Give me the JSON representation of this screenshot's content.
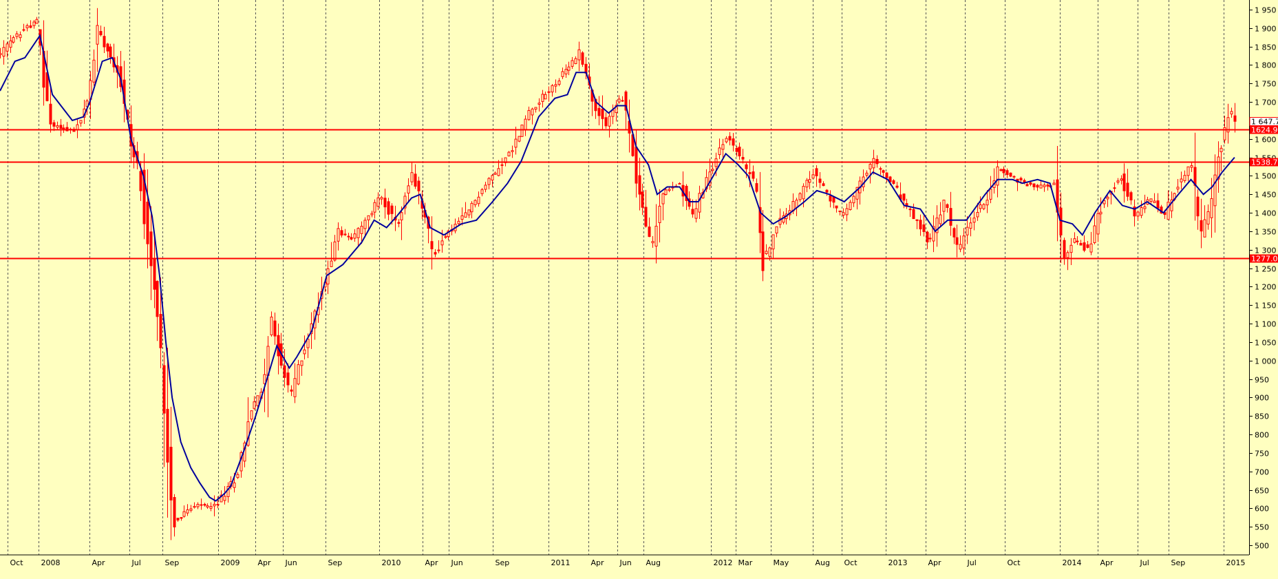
{
  "colors": {
    "background": "#ffffc0",
    "candle": "#ff0000",
    "moving_average": "#00009c",
    "level_line": "#ff0000",
    "grid": "#555555"
  },
  "chart_data": {
    "type": "line",
    "title": "",
    "xlabel": "",
    "ylabel": "",
    "ylim": [
      500,
      1950
    ],
    "y_ticks": [
      500,
      550,
      600,
      650,
      700,
      750,
      800,
      850,
      900,
      950,
      1000,
      1050,
      1100,
      1150,
      1200,
      1250,
      1300,
      1350,
      1400,
      1450,
      1500,
      1550,
      1600,
      1650,
      1700,
      1750,
      1800,
      1850,
      1900,
      1950
    ],
    "y_tick_labels": [
      "500",
      "550",
      "600",
      "650",
      "700",
      "750",
      "800",
      "850",
      "900",
      "950",
      "1 000",
      "1 050",
      "1 100",
      "1 150",
      "1 200",
      "1 250",
      "1 300",
      "1 350",
      "1 400",
      "1 450",
      "1 500",
      "1 550",
      "1 600",
      "1 650",
      "1 700",
      "1 750",
      "1 800",
      "1 850",
      "1 900",
      "1 950"
    ],
    "x_ticks": [
      {
        "label": "Oct",
        "t": 0.006
      },
      {
        "label": "2008",
        "t": 0.031
      },
      {
        "label": "Apr",
        "t": 0.072
      },
      {
        "label": "Jul",
        "t": 0.104
      },
      {
        "label": "Sep",
        "t": 0.13
      },
      {
        "label": "2009",
        "t": 0.175
      },
      {
        "label": "Apr",
        "t": 0.205
      },
      {
        "label": "Jun",
        "t": 0.227
      },
      {
        "label": "Sep",
        "t": 0.261
      },
      {
        "label": "2010",
        "t": 0.304
      },
      {
        "label": "Apr",
        "t": 0.339
      },
      {
        "label": "Jun",
        "t": 0.36
      },
      {
        "label": "Sep",
        "t": 0.395
      },
      {
        "label": "2011",
        "t": 0.44
      },
      {
        "label": "Apr",
        "t": 0.472
      },
      {
        "label": "Jun",
        "t": 0.495
      },
      {
        "label": "Aug",
        "t": 0.516
      },
      {
        "label": "2012",
        "t": 0.57
      },
      {
        "label": "Mar",
        "t": 0.59
      },
      {
        "label": "May",
        "t": 0.618
      },
      {
        "label": "Aug",
        "t": 0.652
      },
      {
        "label": "Oct",
        "t": 0.675
      },
      {
        "label": "2013",
        "t": 0.71
      },
      {
        "label": "Apr",
        "t": 0.742
      },
      {
        "label": "Jul",
        "t": 0.774
      },
      {
        "label": "Oct",
        "t": 0.806
      },
      {
        "label": "2014",
        "t": 0.85
      },
      {
        "label": "Apr",
        "t": 0.88
      },
      {
        "label": "Jul",
        "t": 0.912
      },
      {
        "label": "Sep",
        "t": 0.937
      },
      {
        "label": "2015",
        "t": 0.981
      }
    ],
    "horizontal_levels": [
      {
        "label": "1624.99",
        "value": 1625
      },
      {
        "label": "1538.79",
        "value": 1538.8
      },
      {
        "label": "1277.09",
        "value": 1277.1
      }
    ],
    "last_value_label": "1 647.71",
    "last_value": 1647.7,
    "price_path": [
      {
        "t": 0.0,
        "v": 1830
      },
      {
        "t": 0.01,
        "v": 1870
      },
      {
        "t": 0.02,
        "v": 1900
      },
      {
        "t": 0.03,
        "v": 1920
      },
      {
        "t": 0.034,
        "v": 1780
      },
      {
        "t": 0.04,
        "v": 1640
      },
      {
        "t": 0.05,
        "v": 1630
      },
      {
        "t": 0.06,
        "v": 1620
      },
      {
        "t": 0.07,
        "v": 1700
      },
      {
        "t": 0.078,
        "v": 1900
      },
      {
        "t": 0.085,
        "v": 1850
      },
      {
        "t": 0.095,
        "v": 1780
      },
      {
        "t": 0.105,
        "v": 1580
      },
      {
        "t": 0.112,
        "v": 1500
      },
      {
        "t": 0.118,
        "v": 1330
      },
      {
        "t": 0.123,
        "v": 1200
      },
      {
        "t": 0.13,
        "v": 980
      },
      {
        "t": 0.135,
        "v": 700
      },
      {
        "t": 0.14,
        "v": 560
      },
      {
        "t": 0.148,
        "v": 590
      },
      {
        "t": 0.16,
        "v": 610
      },
      {
        "t": 0.17,
        "v": 600
      },
      {
        "t": 0.18,
        "v": 640
      },
      {
        "t": 0.19,
        "v": 690
      },
      {
        "t": 0.2,
        "v": 860
      },
      {
        "t": 0.21,
        "v": 920
      },
      {
        "t": 0.216,
        "v": 1120
      },
      {
        "t": 0.222,
        "v": 1040
      },
      {
        "t": 0.232,
        "v": 900
      },
      {
        "t": 0.238,
        "v": 970
      },
      {
        "t": 0.25,
        "v": 1100
      },
      {
        "t": 0.262,
        "v": 1240
      },
      {
        "t": 0.27,
        "v": 1350
      },
      {
        "t": 0.282,
        "v": 1330
      },
      {
        "t": 0.294,
        "v": 1380
      },
      {
        "t": 0.305,
        "v": 1450
      },
      {
        "t": 0.318,
        "v": 1360
      },
      {
        "t": 0.33,
        "v": 1500
      },
      {
        "t": 0.34,
        "v": 1400
      },
      {
        "t": 0.347,
        "v": 1280
      },
      {
        "t": 0.357,
        "v": 1340
      },
      {
        "t": 0.372,
        "v": 1390
      },
      {
        "t": 0.39,
        "v": 1480
      },
      {
        "t": 0.41,
        "v": 1570
      },
      {
        "t": 0.425,
        "v": 1680
      },
      {
        "t": 0.44,
        "v": 1730
      },
      {
        "t": 0.455,
        "v": 1790
      },
      {
        "t": 0.465,
        "v": 1840
      },
      {
        "t": 0.475,
        "v": 1700
      },
      {
        "t": 0.485,
        "v": 1640
      },
      {
        "t": 0.495,
        "v": 1700
      },
      {
        "t": 0.5,
        "v": 1710
      },
      {
        "t": 0.51,
        "v": 1490
      },
      {
        "t": 0.522,
        "v": 1300
      },
      {
        "t": 0.53,
        "v": 1450
      },
      {
        "t": 0.545,
        "v": 1480
      },
      {
        "t": 0.555,
        "v": 1390
      },
      {
        "t": 0.57,
        "v": 1520
      },
      {
        "t": 0.583,
        "v": 1610
      },
      {
        "t": 0.595,
        "v": 1540
      },
      {
        "t": 0.605,
        "v": 1480
      },
      {
        "t": 0.612,
        "v": 1270
      },
      {
        "t": 0.625,
        "v": 1380
      },
      {
        "t": 0.64,
        "v": 1440
      },
      {
        "t": 0.652,
        "v": 1510
      },
      {
        "t": 0.665,
        "v": 1440
      },
      {
        "t": 0.675,
        "v": 1390
      },
      {
        "t": 0.69,
        "v": 1480
      },
      {
        "t": 0.7,
        "v": 1540
      },
      {
        "t": 0.715,
        "v": 1480
      },
      {
        "t": 0.73,
        "v": 1400
      },
      {
        "t": 0.745,
        "v": 1320
      },
      {
        "t": 0.757,
        "v": 1430
      },
      {
        "t": 0.768,
        "v": 1300
      },
      {
        "t": 0.782,
        "v": 1400
      },
      {
        "t": 0.79,
        "v": 1430
      },
      {
        "t": 0.8,
        "v": 1520
      },
      {
        "t": 0.815,
        "v": 1490
      },
      {
        "t": 0.83,
        "v": 1470
      },
      {
        "t": 0.845,
        "v": 1480
      },
      {
        "t": 0.852,
        "v": 1260
      },
      {
        "t": 0.86,
        "v": 1330
      },
      {
        "t": 0.872,
        "v": 1300
      },
      {
        "t": 0.885,
        "v": 1440
      },
      {
        "t": 0.898,
        "v": 1500
      },
      {
        "t": 0.91,
        "v": 1390
      },
      {
        "t": 0.922,
        "v": 1440
      },
      {
        "t": 0.933,
        "v": 1390
      },
      {
        "t": 0.945,
        "v": 1480
      },
      {
        "t": 0.955,
        "v": 1540
      },
      {
        "t": 0.962,
        "v": 1330
      },
      {
        "t": 0.97,
        "v": 1410
      },
      {
        "t": 0.978,
        "v": 1580
      },
      {
        "t": 0.986,
        "v": 1680
      },
      {
        "t": 0.99,
        "v": 1648
      }
    ],
    "moving_average": [
      {
        "t": 0.0,
        "v": 1730
      },
      {
        "t": 0.012,
        "v": 1810
      },
      {
        "t": 0.02,
        "v": 1820
      },
      {
        "t": 0.032,
        "v": 1880
      },
      {
        "t": 0.042,
        "v": 1720
      },
      {
        "t": 0.058,
        "v": 1650
      },
      {
        "t": 0.067,
        "v": 1660
      },
      {
        "t": 0.072,
        "v": 1700
      },
      {
        "t": 0.082,
        "v": 1810
      },
      {
        "t": 0.09,
        "v": 1820
      },
      {
        "t": 0.097,
        "v": 1760
      },
      {
        "t": 0.105,
        "v": 1600
      },
      {
        "t": 0.115,
        "v": 1500
      },
      {
        "t": 0.122,
        "v": 1390
      },
      {
        "t": 0.128,
        "v": 1230
      },
      {
        "t": 0.133,
        "v": 1050
      },
      {
        "t": 0.138,
        "v": 900
      },
      {
        "t": 0.145,
        "v": 780
      },
      {
        "t": 0.153,
        "v": 710
      },
      {
        "t": 0.16,
        "v": 670
      },
      {
        "t": 0.168,
        "v": 630
      },
      {
        "t": 0.173,
        "v": 620
      },
      {
        "t": 0.18,
        "v": 640
      },
      {
        "t": 0.185,
        "v": 660
      },
      {
        "t": 0.195,
        "v": 750
      },
      {
        "t": 0.205,
        "v": 850
      },
      {
        "t": 0.215,
        "v": 960
      },
      {
        "t": 0.222,
        "v": 1040
      },
      {
        "t": 0.232,
        "v": 980
      },
      {
        "t": 0.238,
        "v": 1010
      },
      {
        "t": 0.25,
        "v": 1080
      },
      {
        "t": 0.262,
        "v": 1230
      },
      {
        "t": 0.275,
        "v": 1260
      },
      {
        "t": 0.29,
        "v": 1320
      },
      {
        "t": 0.3,
        "v": 1380
      },
      {
        "t": 0.31,
        "v": 1360
      },
      {
        "t": 0.318,
        "v": 1390
      },
      {
        "t": 0.33,
        "v": 1440
      },
      {
        "t": 0.337,
        "v": 1450
      },
      {
        "t": 0.345,
        "v": 1360
      },
      {
        "t": 0.356,
        "v": 1340
      },
      {
        "t": 0.37,
        "v": 1370
      },
      {
        "t": 0.382,
        "v": 1380
      },
      {
        "t": 0.395,
        "v": 1430
      },
      {
        "t": 0.407,
        "v": 1480
      },
      {
        "t": 0.418,
        "v": 1540
      },
      {
        "t": 0.432,
        "v": 1660
      },
      {
        "t": 0.445,
        "v": 1710
      },
      {
        "t": 0.455,
        "v": 1720
      },
      {
        "t": 0.462,
        "v": 1780
      },
      {
        "t": 0.47,
        "v": 1780
      },
      {
        "t": 0.478,
        "v": 1700
      },
      {
        "t": 0.488,
        "v": 1670
      },
      {
        "t": 0.495,
        "v": 1690
      },
      {
        "t": 0.502,
        "v": 1690
      },
      {
        "t": 0.51,
        "v": 1580
      },
      {
        "t": 0.52,
        "v": 1530
      },
      {
        "t": 0.527,
        "v": 1450
      },
      {
        "t": 0.535,
        "v": 1470
      },
      {
        "t": 0.545,
        "v": 1470
      },
      {
        "t": 0.553,
        "v": 1430
      },
      {
        "t": 0.56,
        "v": 1430
      },
      {
        "t": 0.572,
        "v": 1500
      },
      {
        "t": 0.582,
        "v": 1560
      },
      {
        "t": 0.592,
        "v": 1530
      },
      {
        "t": 0.6,
        "v": 1500
      },
      {
        "t": 0.61,
        "v": 1400
      },
      {
        "t": 0.62,
        "v": 1370
      },
      {
        "t": 0.63,
        "v": 1390
      },
      {
        "t": 0.645,
        "v": 1430
      },
      {
        "t": 0.655,
        "v": 1460
      },
      {
        "t": 0.665,
        "v": 1450
      },
      {
        "t": 0.677,
        "v": 1430
      },
      {
        "t": 0.69,
        "v": 1470
      },
      {
        "t": 0.7,
        "v": 1510
      },
      {
        "t": 0.712,
        "v": 1490
      },
      {
        "t": 0.725,
        "v": 1420
      },
      {
        "t": 0.738,
        "v": 1410
      },
      {
        "t": 0.75,
        "v": 1350
      },
      {
        "t": 0.76,
        "v": 1380
      },
      {
        "t": 0.775,
        "v": 1380
      },
      {
        "t": 0.79,
        "v": 1450
      },
      {
        "t": 0.8,
        "v": 1490
      },
      {
        "t": 0.812,
        "v": 1490
      },
      {
        "t": 0.82,
        "v": 1480
      },
      {
        "t": 0.832,
        "v": 1490
      },
      {
        "t": 0.842,
        "v": 1480
      },
      {
        "t": 0.85,
        "v": 1380
      },
      {
        "t": 0.86,
        "v": 1370
      },
      {
        "t": 0.868,
        "v": 1340
      },
      {
        "t": 0.878,
        "v": 1400
      },
      {
        "t": 0.89,
        "v": 1460
      },
      {
        "t": 0.9,
        "v": 1420
      },
      {
        "t": 0.91,
        "v": 1410
      },
      {
        "t": 0.92,
        "v": 1430
      },
      {
        "t": 0.933,
        "v": 1400
      },
      {
        "t": 0.945,
        "v": 1450
      },
      {
        "t": 0.955,
        "v": 1490
      },
      {
        "t": 0.965,
        "v": 1450
      },
      {
        "t": 0.972,
        "v": 1470
      },
      {
        "t": 0.98,
        "v": 1510
      },
      {
        "t": 0.99,
        "v": 1550
      }
    ]
  }
}
